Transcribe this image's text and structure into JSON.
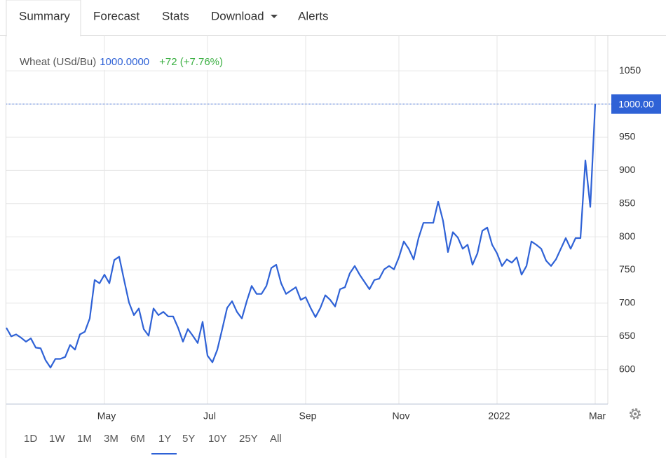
{
  "tabs": [
    "Summary",
    "Forecast",
    "Stats",
    "Download",
    "Alerts"
  ],
  "ranges": [
    "1D",
    "1W",
    "1M",
    "3M",
    "6M",
    "1Y",
    "5Y",
    "10Y",
    "25Y",
    "All"
  ],
  "chart_data": {
    "type": "line",
    "categories": [
      null,
      null,
      null,
      null,
      null,
      null,
      null,
      null,
      null,
      null,
      null,
      null,
      null,
      null,
      null,
      null,
      null,
      null,
      null,
      null,
      "May",
      null,
      null,
      null,
      null,
      null,
      null,
      null,
      null,
      null,
      null,
      null,
      null,
      null,
      null,
      null,
      null,
      null,
      null,
      null,
      null,
      "Jul",
      null,
      null,
      null,
      null,
      null,
      null,
      null,
      null,
      null,
      null,
      null,
      null,
      null,
      null,
      null,
      null,
      null,
      null,
      null,
      "Sep",
      null,
      null,
      null,
      null,
      null,
      null,
      null,
      null,
      null,
      null,
      null,
      null,
      null,
      null,
      null,
      null,
      null,
      null,
      "Nov",
      null,
      null,
      null,
      null,
      null,
      null,
      null,
      null,
      null,
      null,
      null,
      null,
      null,
      null,
      null,
      null,
      null,
      null,
      null,
      "2022",
      null,
      null,
      null,
      null,
      null,
      null,
      null,
      null,
      null,
      null,
      null,
      null,
      null,
      null,
      null,
      null,
      null,
      null,
      null,
      "Mar"
    ],
    "series": [
      {
        "name": "Wheat (USd/Bu)",
        "color": "#2f62d6",
        "values": [
          663,
          650,
          653,
          648,
          642,
          647,
          633,
          632,
          614,
          603,
          616,
          616,
          619,
          637,
          630,
          653,
          657,
          677,
          735,
          730,
          743,
          730,
          765,
          770,
          735,
          701,
          682,
          692,
          661,
          651,
          692,
          682,
          687,
          680,
          680,
          663,
          642,
          661,
          651,
          640,
          672,
          621,
          611,
          630,
          661,
          693,
          703,
          687,
          677,
          703,
          726,
          714,
          714,
          726,
          753,
          758,
          730,
          714,
          719,
          724,
          705,
          709,
          693,
          679,
          693,
          712,
          705,
          695,
          721,
          724,
          745,
          756,
          743,
          732,
          721,
          735,
          737,
          751,
          756,
          751,
          769,
          793,
          782,
          766,
          798,
          821,
          821,
          821,
          853,
          824,
          777,
          807,
          799,
          782,
          788,
          758,
          775,
          809,
          814,
          788,
          775,
          756,
          766,
          761,
          769,
          743,
          756,
          793,
          788,
          782,
          764,
          756,
          766,
          782,
          798,
          782,
          798,
          798,
          915,
          845,
          1000
        ]
      }
    ],
    "current": {
      "value": 1000,
      "label": "1000.0000",
      "change": "+72 (+7.76%)",
      "marker_label": "1000.00"
    },
    "ylim": [
      548,
      1104
    ],
    "yticks": [
      600,
      650,
      700,
      750,
      800,
      850,
      900,
      950,
      1000,
      1050
    ],
    "grid": true
  }
}
